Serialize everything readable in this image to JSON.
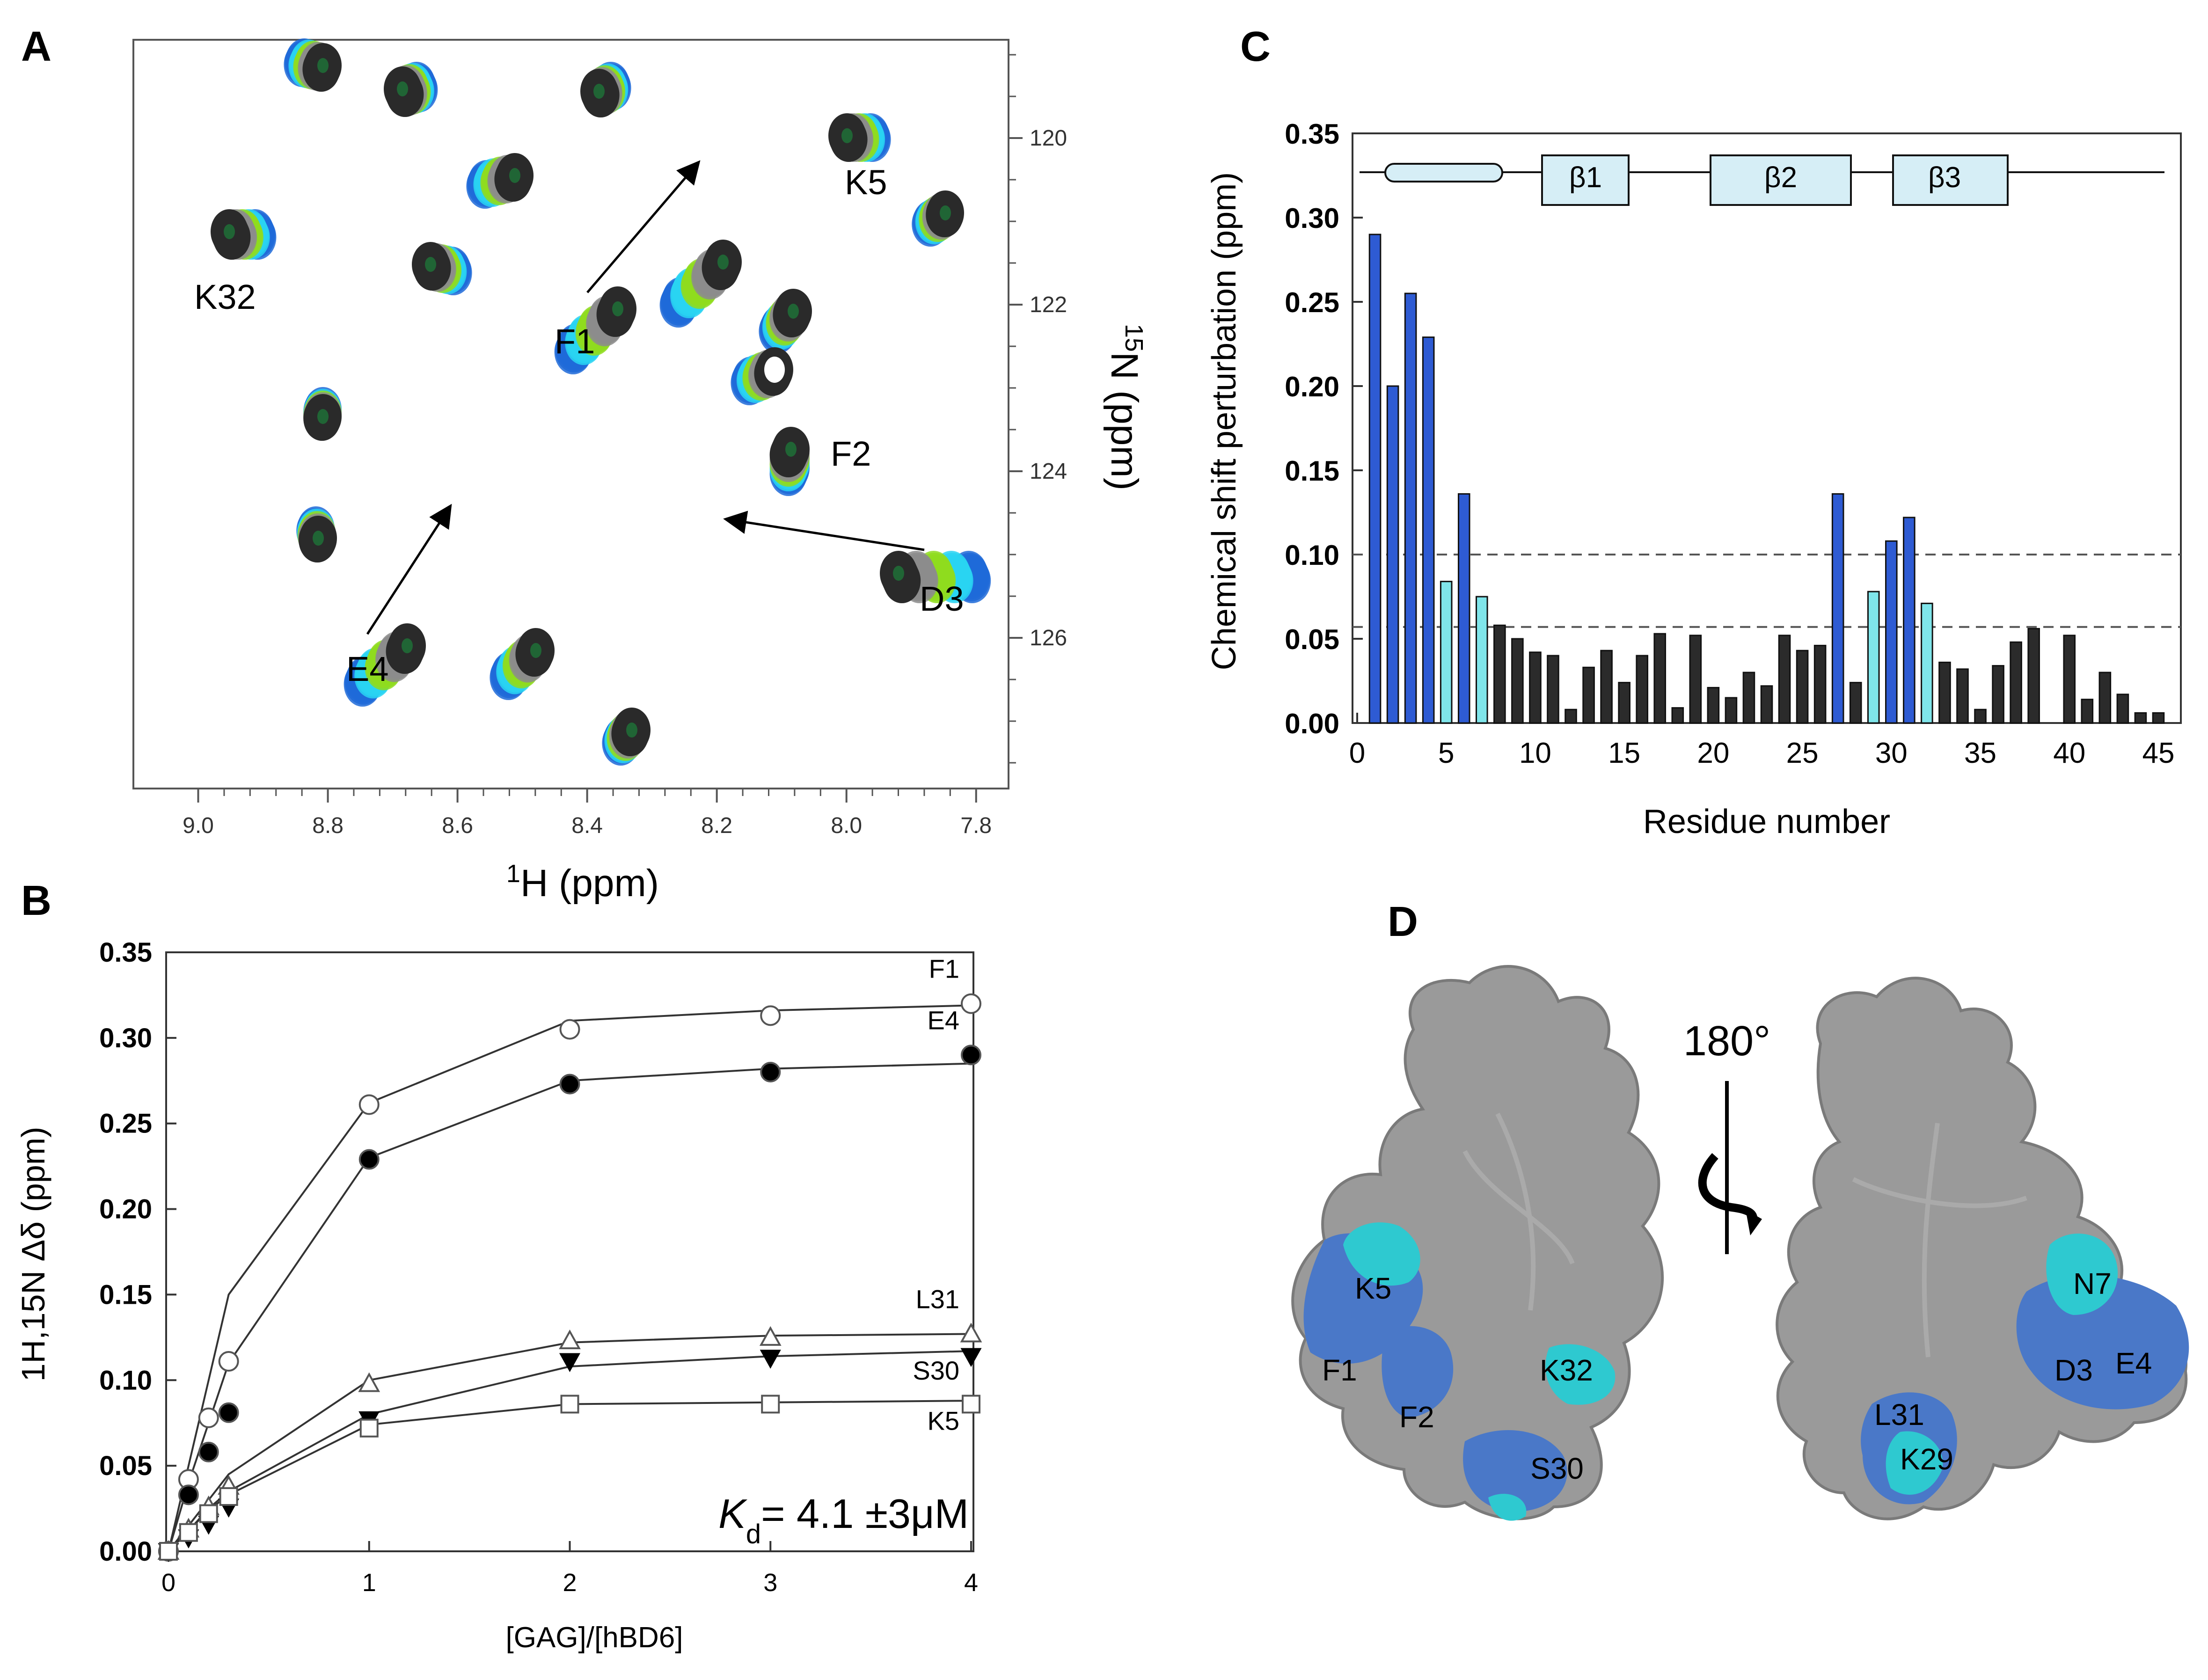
{
  "panel_labels": {
    "a": "A",
    "b": "B",
    "c": "C",
    "d": "D"
  },
  "panel_a": {
    "x_label_sup": "1",
    "x_label": "H (ppm)",
    "y_label_sup": "15",
    "y_label": "N (ppm)",
    "x_ticks": [
      "9.0",
      "8.8",
      "8.6",
      "8.4",
      "8.2",
      "8.0",
      "7.8"
    ],
    "y_ticks": [
      "120",
      "122",
      "124",
      "126"
    ],
    "peak_labels": [
      "K32",
      "F1",
      "K5",
      "F2",
      "D3",
      "E4"
    ],
    "colors": {
      "blue": "#1f6ad8",
      "cyan": "#29d4f2",
      "green": "#8fdc1e",
      "gray": "#8c8c8c",
      "dark": "#2a2a2a"
    }
  },
  "chart_data": [
    {
      "type": "scatter",
      "panel": "B",
      "xlabel": "[GAG]/[hBD6]",
      "ylabel": "1H,15N Δδ (ppm)",
      "xlim": [
        0,
        4
      ],
      "ylim": [
        0,
        0.35
      ],
      "x_ticks": [
        "0",
        "1",
        "2",
        "3",
        "4"
      ],
      "y_ticks": [
        "0.00",
        "0.05",
        "0.10",
        "0.15",
        "0.20",
        "0.25",
        "0.30",
        "0.35"
      ],
      "annotation_prefix": "K",
      "annotation_sub": "d",
      "annotation": "= 4.1 ±3μM",
      "series": [
        {
          "name": "F1",
          "marker": "open-circle",
          "x": [
            0,
            0.1,
            0.2,
            0.3,
            1,
            2,
            3,
            4
          ],
          "y": [
            0.0,
            0.042,
            0.078,
            0.111,
            0.261,
            0.305,
            0.313,
            0.32
          ],
          "fit": [
            0.0,
            0.05,
            0.1,
            0.15,
            0.262,
            0.31,
            0.316,
            0.319
          ]
        },
        {
          "name": "E4",
          "marker": "filled-circle",
          "x": [
            0,
            0.1,
            0.2,
            0.3,
            1,
            2,
            3,
            4
          ],
          "y": [
            0.0,
            0.033,
            0.058,
            0.081,
            0.229,
            0.273,
            0.28,
            0.29
          ],
          "fit": [
            0.0,
            0.04,
            0.075,
            0.11,
            0.23,
            0.275,
            0.282,
            0.285
          ]
        },
        {
          "name": "L31",
          "marker": "open-triangle",
          "x": [
            0,
            0.1,
            0.2,
            0.3,
            1,
            2,
            3,
            4
          ],
          "y": [
            0.0,
            0.013,
            0.026,
            0.038,
            0.098,
            0.123,
            0.125,
            0.127
          ],
          "fit": [
            0.0,
            0.015,
            0.03,
            0.045,
            0.1,
            0.122,
            0.126,
            0.127
          ]
        },
        {
          "name": "S30",
          "marker": "filled-triangle-down",
          "x": [
            0,
            0.1,
            0.2,
            0.3,
            1,
            2,
            3,
            4
          ],
          "y": [
            0.0,
            0.008,
            0.016,
            0.026,
            0.077,
            0.111,
            0.113,
            0.114
          ],
          "fit": [
            0.0,
            0.012,
            0.025,
            0.035,
            0.08,
            0.108,
            0.114,
            0.117
          ]
        },
        {
          "name": "K5",
          "marker": "open-square",
          "x": [
            0,
            0.1,
            0.2,
            0.3,
            1,
            2,
            3,
            4
          ],
          "y": [
            0.0,
            0.011,
            0.022,
            0.032,
            0.072,
            0.086,
            0.086,
            0.086
          ],
          "fit": [
            0.0,
            0.012,
            0.024,
            0.033,
            0.074,
            0.086,
            0.087,
            0.088
          ]
        }
      ]
    },
    {
      "type": "bar",
      "panel": "C",
      "xlabel": "Residue number",
      "ylabel": "Chemical shift perturbation (ppm)",
      "xlim": [
        0,
        46
      ],
      "ylim": [
        0,
        0.35
      ],
      "x_ticks": [
        "0",
        "5",
        "10",
        "15",
        "20",
        "25",
        "30",
        "35",
        "40",
        "45"
      ],
      "y_ticks": [
        "0.00",
        "0.05",
        "0.10",
        "0.15",
        "0.20",
        "0.25",
        "0.30",
        "0.35"
      ],
      "thresholds": [
        0.1,
        0.057
      ],
      "secondary_structure": [
        "β1",
        "β2",
        "β3"
      ],
      "bar_colors": {
        "blue": "#2e5bd3",
        "cyan": "#7fe5ea",
        "black": "#2b2b2b"
      },
      "residues": [
        1,
        2,
        3,
        4,
        5,
        6,
        7,
        8,
        9,
        10,
        11,
        12,
        13,
        14,
        15,
        16,
        17,
        18,
        19,
        20,
        21,
        22,
        23,
        24,
        25,
        26,
        27,
        28,
        29,
        30,
        31,
        32,
        33,
        34,
        35,
        36,
        37,
        38,
        40,
        41,
        42,
        43,
        44,
        45
      ],
      "values": [
        0.29,
        0.2,
        0.255,
        0.229,
        0.084,
        0.136,
        0.075,
        0.058,
        0.05,
        0.042,
        0.04,
        0.008,
        0.033,
        0.043,
        0.024,
        0.04,
        0.053,
        0.009,
        0.052,
        0.021,
        0.015,
        0.03,
        0.022,
        0.052,
        0.043,
        0.046,
        0.136,
        0.024,
        0.078,
        0.108,
        0.122,
        0.071,
        0.036,
        0.032,
        0.008,
        0.034,
        0.048,
        0.056,
        0.052,
        0.014,
        0.03,
        0.017,
        0.006,
        0.006
      ],
      "categories": [
        "blue",
        "blue",
        "blue",
        "blue",
        "cyan",
        "blue",
        "cyan",
        "black",
        "black",
        "black",
        "black",
        "black",
        "black",
        "black",
        "black",
        "black",
        "black",
        "black",
        "black",
        "black",
        "black",
        "black",
        "black",
        "black",
        "black",
        "black",
        "blue",
        "black",
        "cyan",
        "blue",
        "blue",
        "cyan",
        "black",
        "black",
        "black",
        "black",
        "black",
        "black",
        "black",
        "black",
        "black",
        "black",
        "black",
        "black"
      ]
    }
  ],
  "panel_d": {
    "rotation_label": "180°",
    "left_labels": [
      "K5",
      "F1",
      "F2",
      "K32",
      "S30"
    ],
    "right_labels": [
      "N7",
      "D3",
      "E4",
      "L31",
      "K29"
    ],
    "colors": {
      "surface": "#9a9a9a",
      "blue": "#4a78c8",
      "cyan": "#2ec9d0"
    }
  }
}
